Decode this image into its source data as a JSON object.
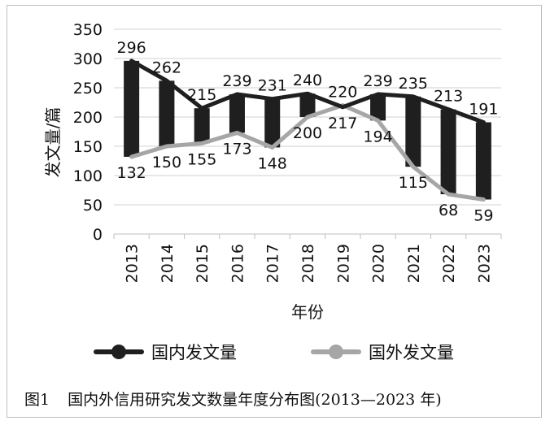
{
  "figure": {
    "number": "图1",
    "caption": "国内外信用研究发文数量年度分布图(2013—2023 年)"
  },
  "chart_data": {
    "type": "line",
    "x": [
      "2013",
      "2014",
      "2015",
      "2016",
      "2017",
      "2018",
      "2019",
      "2020",
      "2021",
      "2022",
      "2023"
    ],
    "series": [
      {
        "name": "国内发文量",
        "color": "#1f1f1f",
        "values": [
          296,
          262,
          215,
          239,
          231,
          240,
          217,
          239,
          235,
          213,
          191
        ]
      },
      {
        "name": "国外发文量",
        "color": "#a6a6a6",
        "values": [
          132,
          150,
          155,
          173,
          148,
          200,
          220,
          194,
          115,
          68,
          59
        ]
      }
    ],
    "xlabel": "年份",
    "ylabel": "发文量/篇",
    "ylim": [
      0,
      350
    ],
    "yticks": [
      0,
      50,
      100,
      150,
      200,
      250,
      300,
      350
    ],
    "grid": true,
    "legend": "bottom",
    "high_low_bars": true,
    "bar_color": "#1f1f1f"
  }
}
